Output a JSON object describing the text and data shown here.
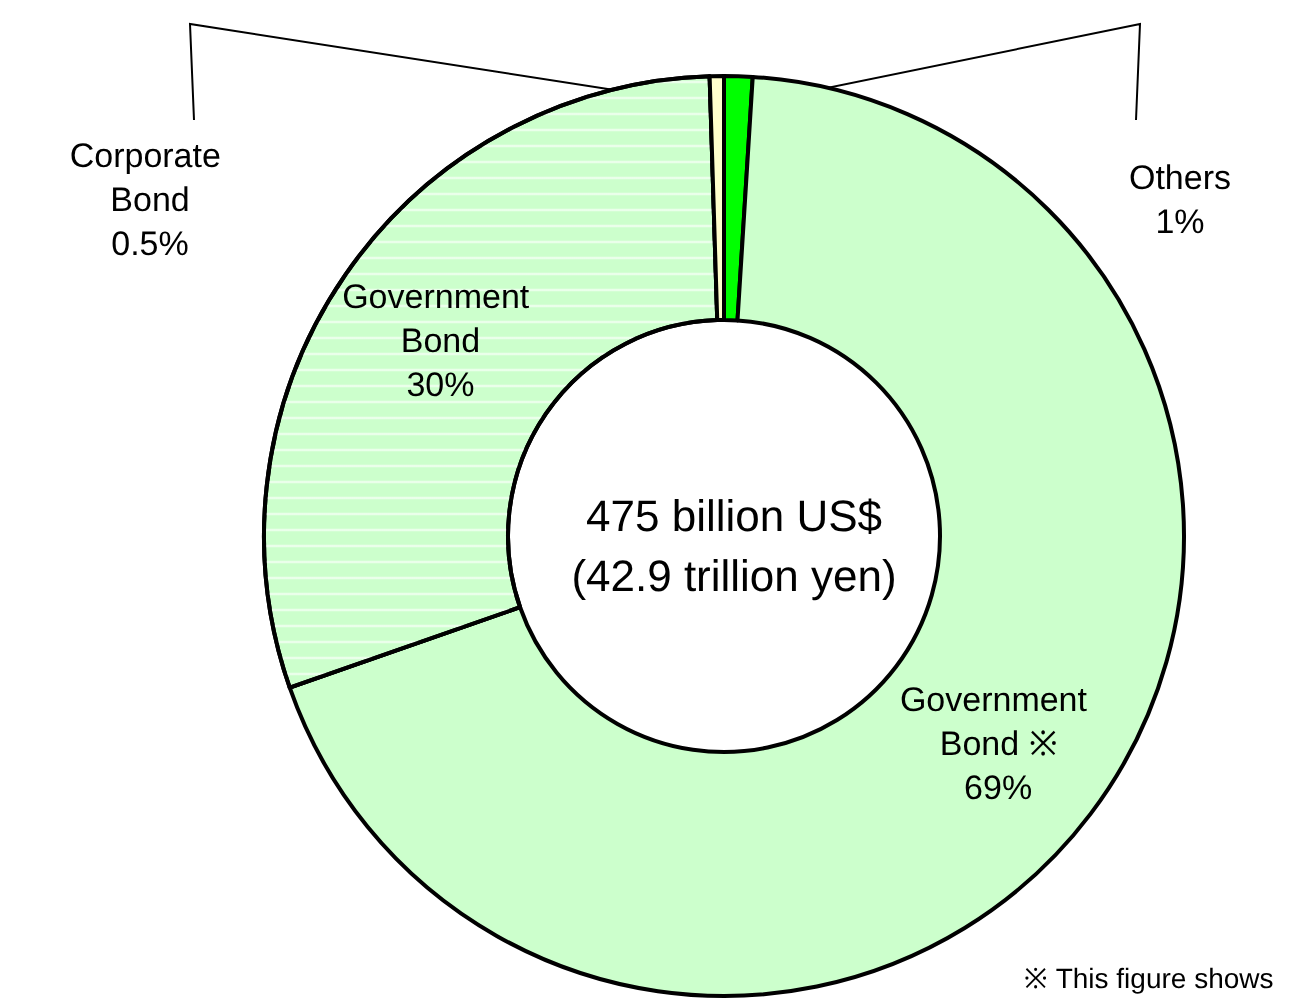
{
  "chart_data": {
    "type": "donut",
    "categories": [
      "Others",
      "Government Bond ※",
      "Government Bond",
      "Corporate Bond"
    ],
    "values": [
      1,
      69,
      30,
      0.5
    ],
    "value_labels": [
      "1%",
      "69%",
      "30%",
      "0.5%"
    ],
    "colors": [
      "#00ff00",
      "#ccffcc",
      "#ccffcc",
      "#ffffcc"
    ],
    "annotations": [
      "475 billion US$\n(42.9 trillion yen)",
      "※ This figure shows"
    ],
    "legend": false
  }
}
